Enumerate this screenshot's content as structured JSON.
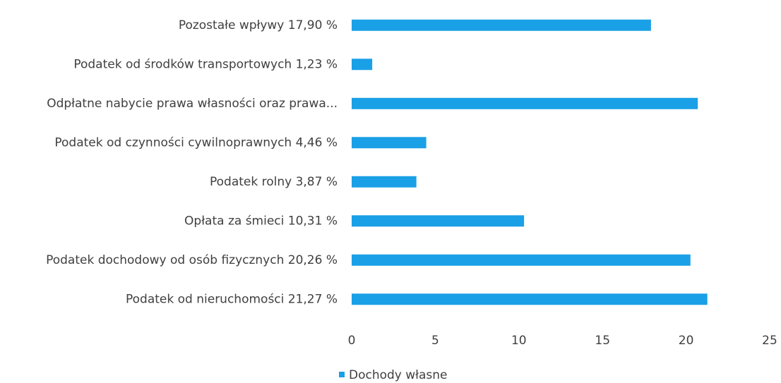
{
  "chart_data": {
    "type": "hbar",
    "categories": [
      "Pozostałe wpływy 17,90 %",
      "Podatek od środków transportowych 1,23 %",
      "Odpłatne nabycie prawa własności oraz prawa...",
      "Podatek od czynności cywilnoprawnych 4,46 %",
      "Podatek rolny 3,87 %",
      "Opłata za śmieci 10,31 %",
      "Podatek dochodowy od osób fizycznych 20,26 %",
      "Podatek od nieruchomości 21,27 %"
    ],
    "series": [
      {
        "name": "Dochody własne",
        "color": "#1aa0e6",
        "values": [
          17.9,
          1.23,
          20.7,
          4.46,
          3.87,
          10.31,
          20.26,
          21.27
        ]
      }
    ],
    "xlim": [
      0,
      25
    ],
    "xticks": [
      0,
      5,
      10,
      15,
      20,
      25
    ],
    "grid": false,
    "legend": "bottom"
  }
}
